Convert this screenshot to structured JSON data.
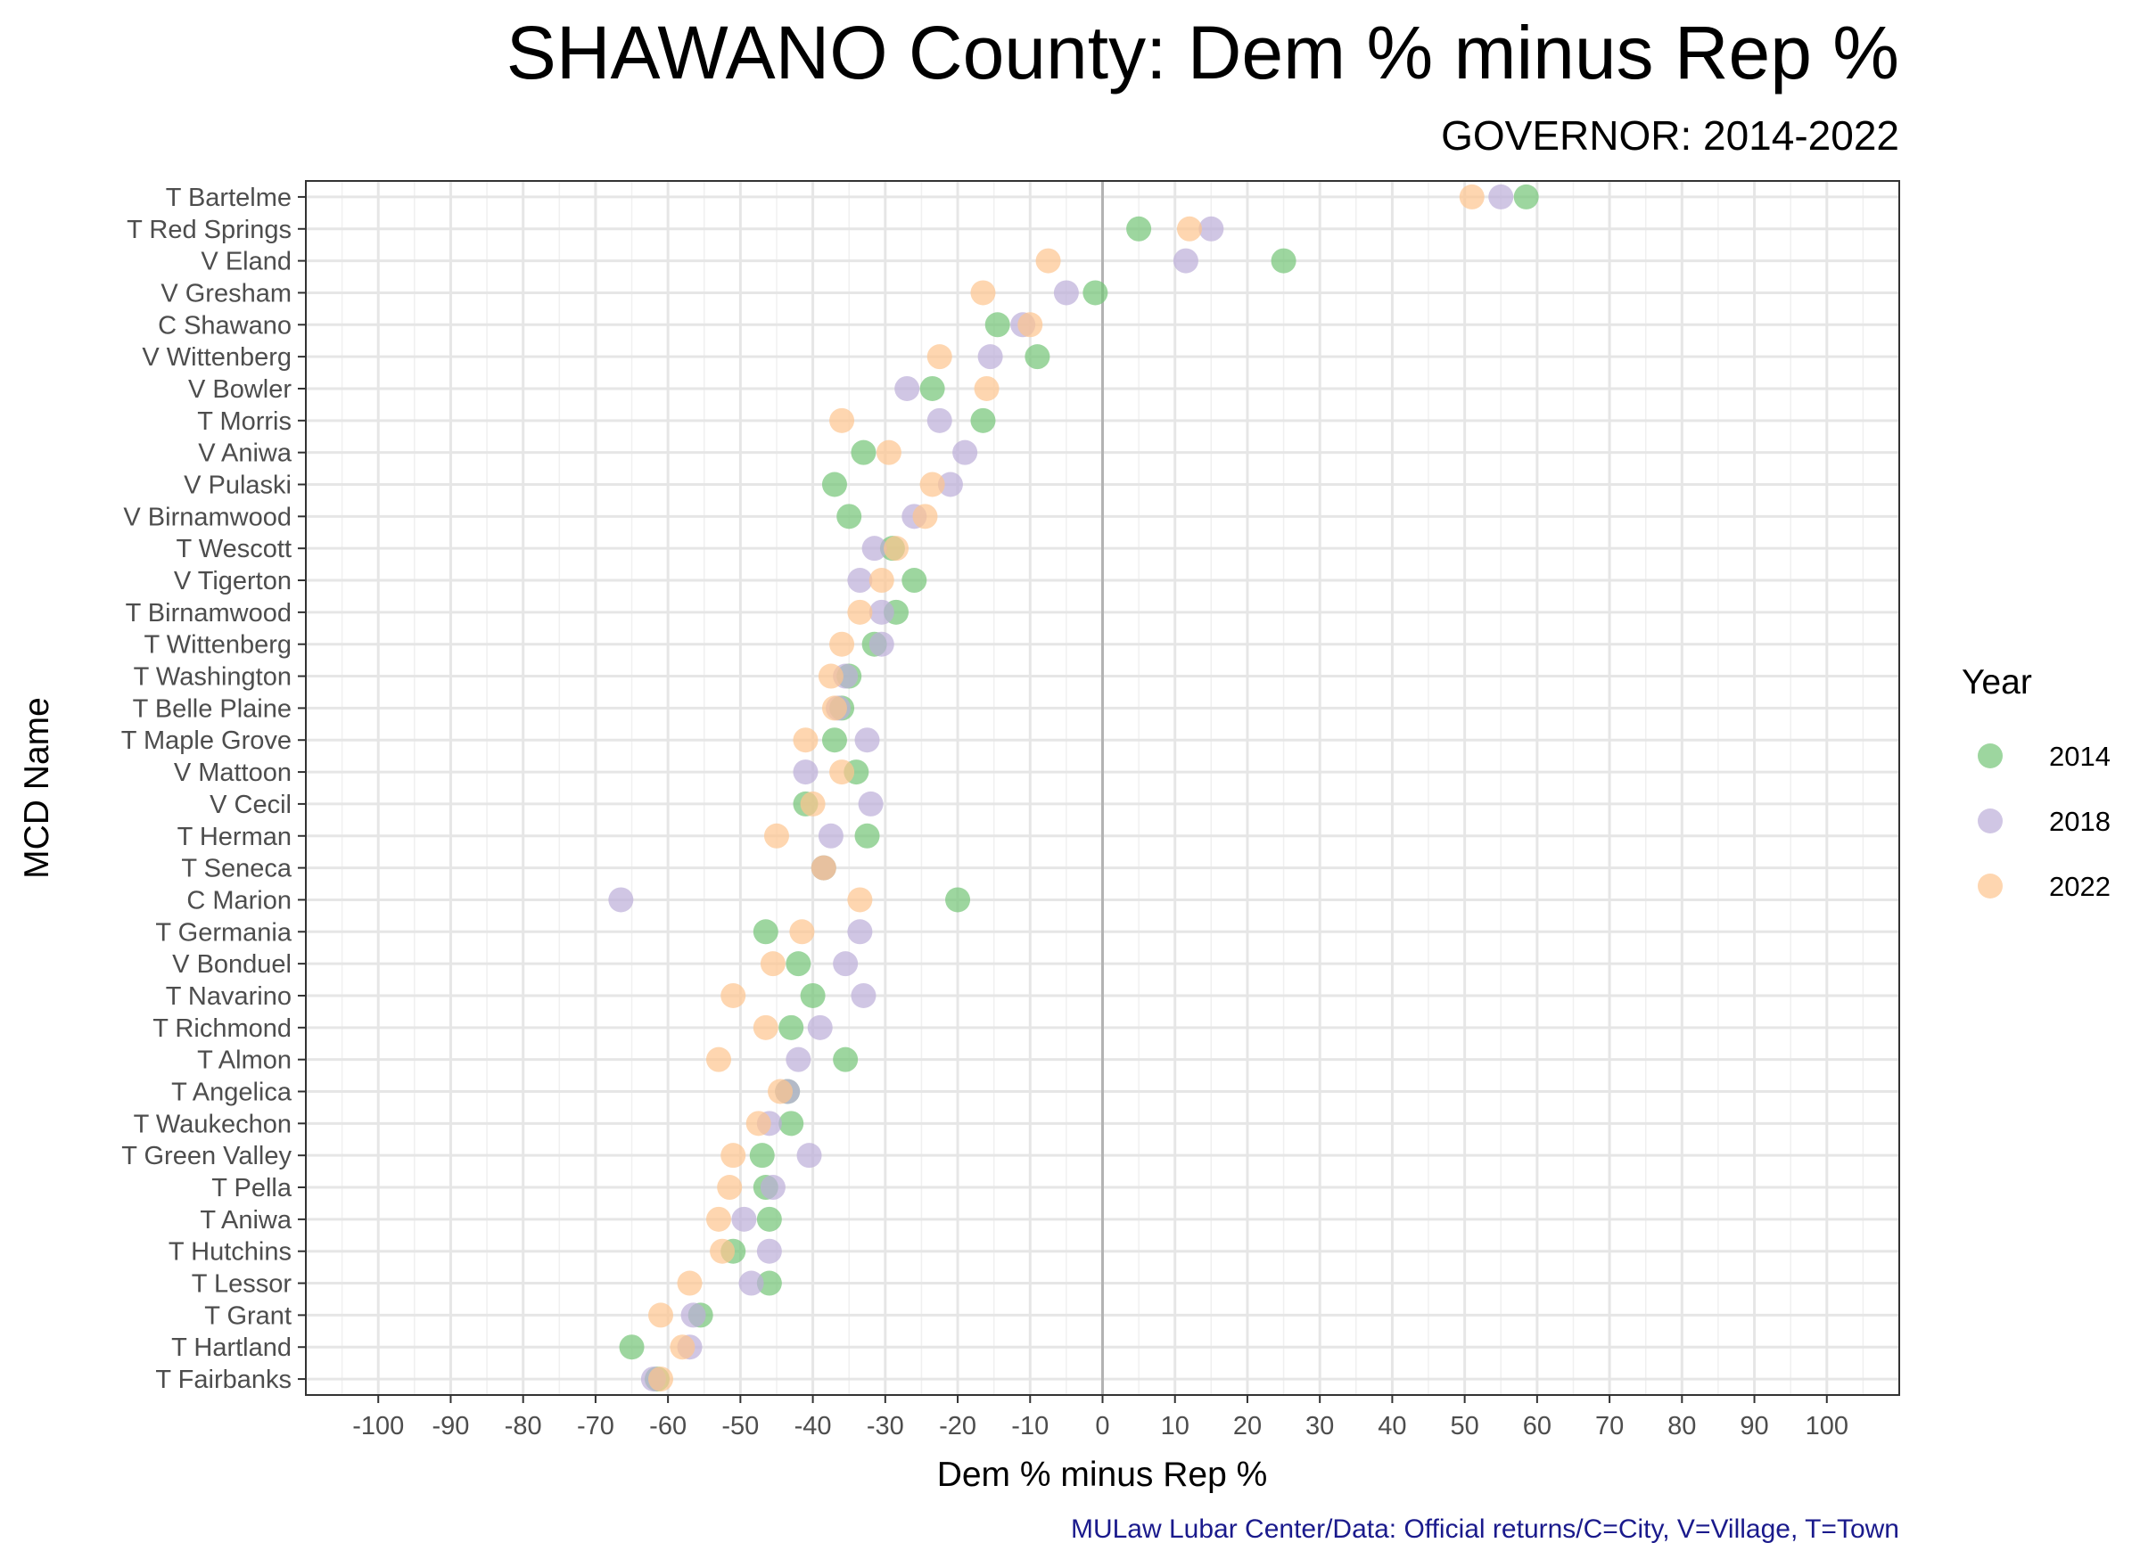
{
  "chart_data": {
    "type": "scatter",
    "title": "SHAWANO County: Dem % minus Rep %",
    "subtitle": "GOVERNOR: 2014-2022",
    "xlabel": "Dem % minus Rep %",
    "ylabel": "MCD Name",
    "xlim": [
      -110,
      110
    ],
    "x_ticks": [
      -100,
      -90,
      -80,
      -70,
      -60,
      -50,
      -40,
      -30,
      -20,
      -10,
      0,
      10,
      20,
      30,
      40,
      50,
      60,
      70,
      80,
      90,
      100
    ],
    "x_tick_labels": [
      "-100",
      "-90",
      "-80",
      "-70",
      "-60",
      "-50",
      "-40",
      "-30",
      "-20",
      "-10",
      "0",
      "10",
      "20",
      "30",
      "40",
      "50",
      "60",
      "70",
      "80",
      "90",
      "100"
    ],
    "grid": true,
    "reference_line_x": 0,
    "legend": {
      "title": "Year",
      "placement": "right"
    },
    "caption": "MULaw Lubar Center/Data: Official returns/C=City, V=Village, T=Town",
    "categories": [
      "T Bartelme",
      "T Red Springs",
      "V Eland",
      "V Gresham",
      "C Shawano",
      "V Wittenberg",
      "V Bowler",
      "T Morris",
      "V Aniwa",
      "V Pulaski",
      "V Birnamwood",
      "T Wescott",
      "V Tigerton",
      "T Birnamwood",
      "T Wittenberg",
      "T Washington",
      "T Belle Plaine",
      "T Maple Grove",
      "V Mattoon",
      "V Cecil",
      "T Herman",
      "T Seneca",
      "C Marion",
      "T Germania",
      "V Bonduel",
      "T Navarino",
      "T Richmond",
      "T Almon",
      "T Angelica",
      "T Waukechon",
      "T Green Valley",
      "T Pella",
      "T Aniwa",
      "T Hutchins",
      "T Lessor",
      "T Grant",
      "T Hartland",
      "T Fairbanks"
    ],
    "series": [
      {
        "name": "2014",
        "color": "#74c476",
        "values": [
          58.5,
          5,
          25,
          -1,
          -14.5,
          -9,
          -23.5,
          -16.5,
          -33,
          -37,
          -35,
          -29,
          -26,
          -28.5,
          -31.5,
          -35,
          -36,
          -37,
          -34,
          -41,
          -32.5,
          -38.5,
          -20,
          -46.5,
          -42,
          -40,
          -43,
          -35.5,
          -43.5,
          -43,
          -47,
          -46.5,
          -46,
          -51,
          -46,
          -55.5,
          -65,
          -61.5
        ]
      },
      {
        "name": "2018",
        "color": "#bcaed9",
        "values": [
          55,
          15,
          11.5,
          -5,
          -11,
          -15.5,
          -27,
          -22.5,
          -19,
          -21,
          -26,
          -31.5,
          -33.5,
          -30.5,
          -30.5,
          -35.5,
          -36.5,
          -32.5,
          -41,
          -32,
          -37.5,
          -38.5,
          -66.5,
          -33.5,
          -35.5,
          -33,
          -39,
          -42,
          -43.5,
          -46,
          -40.5,
          -45.5,
          -49.5,
          -46,
          -48.5,
          -56.5,
          -57,
          -62
        ]
      },
      {
        "name": "2022",
        "color": "#fdc58f",
        "values": [
          51,
          12,
          -7.5,
          -16.5,
          -10,
          -22.5,
          -16,
          -36,
          -29.5,
          -23.5,
          -24.5,
          -28.5,
          -30.5,
          -33.5,
          -36,
          -37.5,
          -37,
          -41,
          -36,
          -40,
          -45,
          -38.5,
          -33.5,
          -41.5,
          -45.5,
          -51,
          -46.5,
          -53,
          -44.5,
          -47.5,
          -51,
          -51.5,
          -53,
          -52.5,
          -57,
          -61,
          -58,
          -61
        ]
      }
    ]
  }
}
